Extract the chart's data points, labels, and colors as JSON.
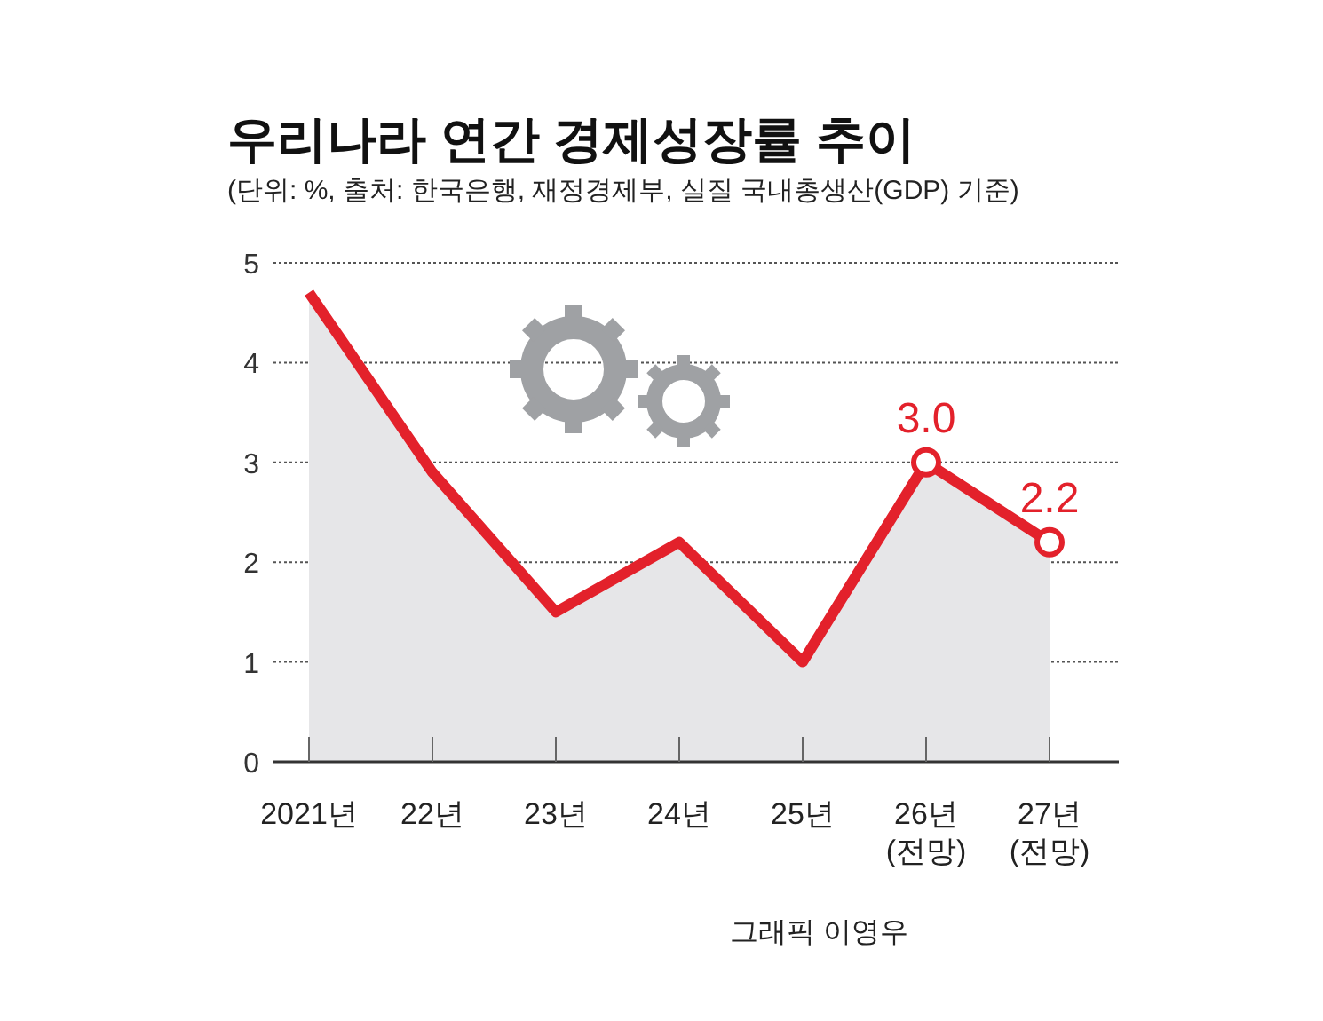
{
  "chart_data": {
    "type": "area",
    "title": "우리나라 연간 경제성장률 추이",
    "subtitle": "(단위: %, 출처: 한국은행, 재정경제부, 실질 국내총생산(GDP) 기준)",
    "categories": [
      "2021년",
      "22년",
      "23년",
      "24년",
      "25년",
      "26년 (전망)",
      "27년 (전망)"
    ],
    "series": [
      {
        "color": "#e3212b",
        "values": [
          4.7,
          2.9,
          1.5,
          2.2,
          1.0,
          3.0,
          2.2
        ]
      },
      {
        "type": "scatter",
        "color": "#e3212b",
        "marker": "circle",
        "x": [
          "26년 (전망)",
          "27년 (전망)"
        ],
        "values": [
          3.0,
          2.2
        ],
        "value_labels": [
          "3.0",
          "2.2"
        ]
      }
    ],
    "ylim": [
      0,
      5
    ],
    "yticks": [
      0,
      1,
      2,
      3,
      4,
      5
    ],
    "grid": "y",
    "annotations": [
      "그래픽 이영우"
    ]
  }
}
